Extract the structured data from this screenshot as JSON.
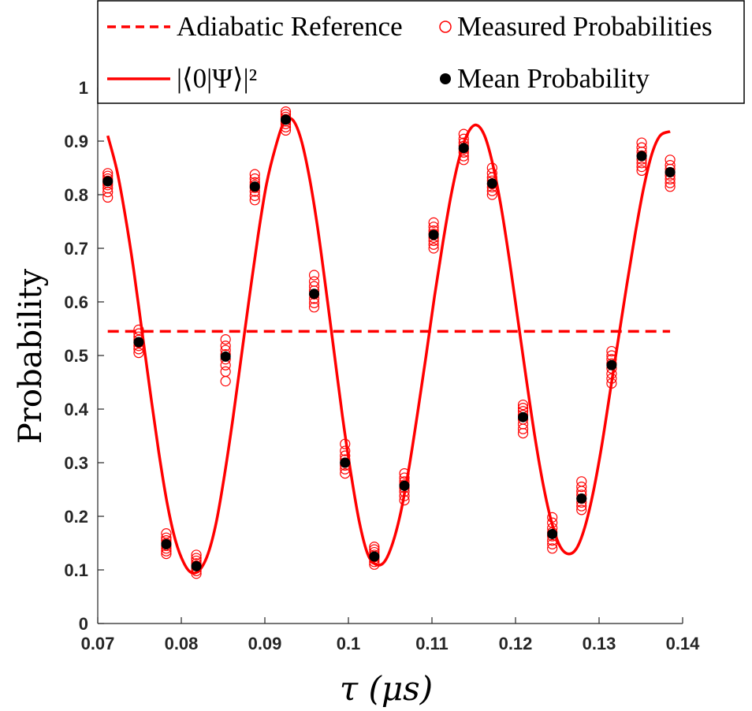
{
  "chart_data": {
    "type": "scatter",
    "title": "",
    "xlabel": "τ (μs)",
    "ylabel": "Probability",
    "xlim": [
      0.07,
      0.14
    ],
    "ylim": [
      0,
      1
    ],
    "xticks": [
      0.07,
      0.08,
      0.09,
      0.1,
      0.11,
      0.12,
      0.13,
      0.14
    ],
    "xtick_labels": [
      "0.07",
      "0.08",
      "0.09",
      "0.1",
      "0.11",
      "0.12",
      "0.13",
      "0.14"
    ],
    "yticks": [
      0,
      0.1,
      0.2,
      0.3,
      0.4,
      0.5,
      0.6,
      0.7,
      0.8,
      0.9,
      1
    ],
    "ytick_labels": [
      "0",
      "0.1",
      "0.2",
      "0.3",
      "0.4",
      "0.5",
      "0.6",
      "0.7",
      "0.8",
      "0.9",
      "1"
    ],
    "legend": {
      "placement": "top",
      "entries": [
        "Adiabatic Reference",
        "Measured Probabilities",
        "|⟨0|Ψ⟩|²",
        "Mean Probability"
      ]
    },
    "colors": {
      "curve": "#ff0000",
      "measured": "#ff0000",
      "mean": "#000000"
    },
    "adiabatic_reference": {
      "name": "Adiabatic Reference",
      "y": 0.545,
      "x_range": [
        0.0712,
        0.1385
      ]
    },
    "theory_curve": {
      "name": "|⟨0|Ψ⟩|²",
      "x": [
        0.0712,
        0.0723,
        0.0733,
        0.0743,
        0.0753,
        0.0763,
        0.0773,
        0.0783,
        0.0793,
        0.0803,
        0.0812,
        0.0822,
        0.0832,
        0.0842,
        0.0852,
        0.0862,
        0.0872,
        0.0882,
        0.0892,
        0.0902,
        0.0913,
        0.0923,
        0.0933,
        0.0943,
        0.0953,
        0.0963,
        0.0973,
        0.0983,
        0.0993,
        0.1003,
        0.1013,
        0.1023,
        0.1033,
        0.1043,
        0.1053,
        0.1063,
        0.1073,
        0.1083,
        0.1093,
        0.1103,
        0.1113,
        0.1123,
        0.1133,
        0.1143,
        0.1153,
        0.1163,
        0.1173,
        0.1183,
        0.1193,
        0.1203,
        0.1213,
        0.1223,
        0.1233,
        0.1243,
        0.1253,
        0.1263,
        0.1273,
        0.1283,
        0.1293,
        0.1303,
        0.1313,
        0.1323,
        0.1333,
        0.1343,
        0.1353,
        0.1363,
        0.1373,
        0.1385
      ],
      "y": [
        0.91,
        0.845,
        0.76,
        0.66,
        0.545,
        0.43,
        0.32,
        0.225,
        0.155,
        0.113,
        0.095,
        0.1,
        0.13,
        0.19,
        0.28,
        0.385,
        0.5,
        0.615,
        0.725,
        0.82,
        0.89,
        0.935,
        0.94,
        0.905,
        0.835,
        0.74,
        0.625,
        0.505,
        0.385,
        0.28,
        0.19,
        0.13,
        0.11,
        0.115,
        0.15,
        0.21,
        0.295,
        0.395,
        0.5,
        0.61,
        0.71,
        0.8,
        0.87,
        0.915,
        0.93,
        0.91,
        0.855,
        0.775,
        0.675,
        0.565,
        0.455,
        0.35,
        0.26,
        0.19,
        0.145,
        0.13,
        0.14,
        0.18,
        0.245,
        0.33,
        0.43,
        0.53,
        0.63,
        0.725,
        0.81,
        0.875,
        0.91,
        0.918
      ]
    },
    "measured": {
      "name": "Measured Probabilities",
      "groups": [
        {
          "x": 0.0712,
          "y": [
            0.795,
            0.805,
            0.812,
            0.818,
            0.822,
            0.826,
            0.83,
            0.835,
            0.84
          ]
        },
        {
          "x": 0.0749,
          "y": [
            0.505,
            0.512,
            0.518,
            0.524,
            0.529,
            0.535,
            0.541,
            0.548
          ]
        },
        {
          "x": 0.0782,
          "y": [
            0.13,
            0.135,
            0.14,
            0.145,
            0.15,
            0.155,
            0.16,
            0.168
          ]
        },
        {
          "x": 0.0818,
          "y": [
            0.093,
            0.098,
            0.103,
            0.108,
            0.112,
            0.117,
            0.122,
            0.128
          ]
        },
        {
          "x": 0.0853,
          "y": [
            0.452,
            0.47,
            0.482,
            0.493,
            0.502,
            0.51,
            0.518,
            0.53
          ]
        },
        {
          "x": 0.0888,
          "y": [
            0.79,
            0.798,
            0.806,
            0.813,
            0.818,
            0.823,
            0.83,
            0.838
          ]
        },
        {
          "x": 0.0925,
          "y": [
            0.92,
            0.926,
            0.932,
            0.937,
            0.941,
            0.945,
            0.95,
            0.955
          ]
        },
        {
          "x": 0.0959,
          "y": [
            0.59,
            0.598,
            0.606,
            0.614,
            0.621,
            0.629,
            0.638,
            0.65
          ]
        },
        {
          "x": 0.0996,
          "y": [
            0.28,
            0.288,
            0.295,
            0.3,
            0.306,
            0.313,
            0.322,
            0.335
          ]
        },
        {
          "x": 0.1031,
          "y": [
            0.11,
            0.115,
            0.12,
            0.124,
            0.128,
            0.133,
            0.138,
            0.143
          ]
        },
        {
          "x": 0.1067,
          "y": [
            0.23,
            0.238,
            0.246,
            0.253,
            0.259,
            0.265,
            0.272,
            0.28
          ]
        },
        {
          "x": 0.1102,
          "y": [
            0.7,
            0.707,
            0.714,
            0.72,
            0.727,
            0.733,
            0.74,
            0.748
          ]
        },
        {
          "x": 0.1138,
          "y": [
            0.865,
            0.872,
            0.879,
            0.885,
            0.891,
            0.897,
            0.904,
            0.913
          ]
        },
        {
          "x": 0.1172,
          "y": [
            0.8,
            0.807,
            0.814,
            0.82,
            0.826,
            0.832,
            0.84,
            0.85
          ]
        },
        {
          "x": 0.1209,
          "y": [
            0.355,
            0.363,
            0.372,
            0.381,
            0.389,
            0.396,
            0.402,
            0.408
          ]
        },
        {
          "x": 0.1244,
          "y": [
            0.14,
            0.148,
            0.155,
            0.163,
            0.17,
            0.178,
            0.188,
            0.198
          ]
        },
        {
          "x": 0.1279,
          "y": [
            0.212,
            0.219,
            0.226,
            0.233,
            0.24,
            0.247,
            0.255,
            0.265
          ]
        },
        {
          "x": 0.1315,
          "y": [
            0.448,
            0.457,
            0.466,
            0.476,
            0.485,
            0.493,
            0.5,
            0.508
          ]
        },
        {
          "x": 0.1351,
          "y": [
            0.845,
            0.852,
            0.859,
            0.866,
            0.873,
            0.88,
            0.888,
            0.897
          ]
        },
        {
          "x": 0.1385,
          "y": [
            0.815,
            0.822,
            0.829,
            0.836,
            0.842,
            0.848,
            0.855,
            0.865
          ]
        }
      ]
    },
    "mean": {
      "name": "Mean Probability",
      "x": [
        0.0712,
        0.0749,
        0.0782,
        0.0818,
        0.0853,
        0.0888,
        0.0925,
        0.0959,
        0.0996,
        0.1031,
        0.1067,
        0.1102,
        0.1138,
        0.1172,
        0.1209,
        0.1244,
        0.1279,
        0.1315,
        0.1351,
        0.1385
      ],
      "y": [
        0.825,
        0.525,
        0.148,
        0.107,
        0.498,
        0.815,
        0.94,
        0.615,
        0.3,
        0.125,
        0.257,
        0.725,
        0.887,
        0.821,
        0.385,
        0.167,
        0.233,
        0.482,
        0.872,
        0.842
      ]
    }
  }
}
